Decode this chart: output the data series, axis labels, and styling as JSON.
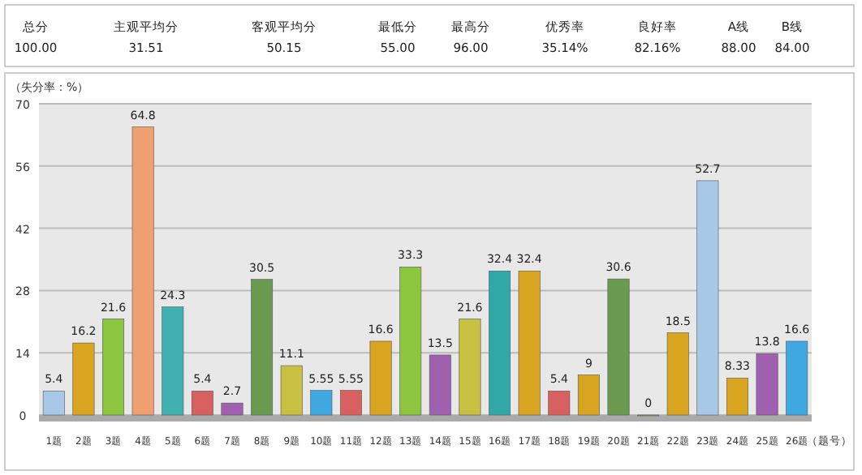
{
  "chart_data": {
    "type": "bar",
    "annotations": [
      "总分",
      "主观平均分",
      "客观平均分",
      "最低分",
      "最高分",
      "优秀率",
      "良好率",
      "A线",
      "B线",
      "100.00",
      "31.51",
      "50.15",
      "55.00",
      "96.00",
      "35.14%",
      "82.16%",
      "88.00",
      "84.00"
    ],
    "xlabel": "（题号）",
    "ylabel": "（失分率：%）",
    "categories": [
      "1题",
      "2题",
      "3题",
      "4题",
      "5题",
      "6题",
      "7题",
      "8题",
      "9题",
      "10题",
      "11题",
      "12题",
      "13题",
      "14题",
      "15题",
      "16题",
      "17题",
      "18题",
      "19题",
      "20题",
      "21题",
      "22题",
      "23题",
      "24题",
      "25题",
      "26题"
    ],
    "values": [
      5.4,
      16.2,
      21.6,
      64.8,
      24.3,
      5.4,
      2.7,
      30.5,
      11.1,
      5.55,
      5.55,
      16.6,
      33.3,
      13.5,
      21.6,
      32.4,
      32.4,
      5.4,
      9,
      30.6,
      0,
      18.5,
      52.7,
      8.33,
      13.8,
      16.6
    ],
    "colors": [
      "#a8c8e8",
      "#d9a520",
      "#8cc63f",
      "#f0a070",
      "#40b0b0",
      "#d86060",
      "#a060b0",
      "#6a9a50",
      "#c8c040",
      "#40a8e0",
      "#d86060",
      "#d9a520",
      "#8cc63f",
      "#a060b0",
      "#c8c040",
      "#30a8a8",
      "#d9a520",
      "#d86060",
      "#d9a520",
      "#6a9a50",
      "#8cc63f",
      "#d9a520",
      "#a8c8e8",
      "#d9a520",
      "#a060b0",
      "#40a8e0"
    ],
    "ylim": [
      0,
      70
    ],
    "yticks": [
      0,
      14,
      28,
      42,
      56,
      70
    ],
    "grid": "y",
    "data_labels": true
  }
}
